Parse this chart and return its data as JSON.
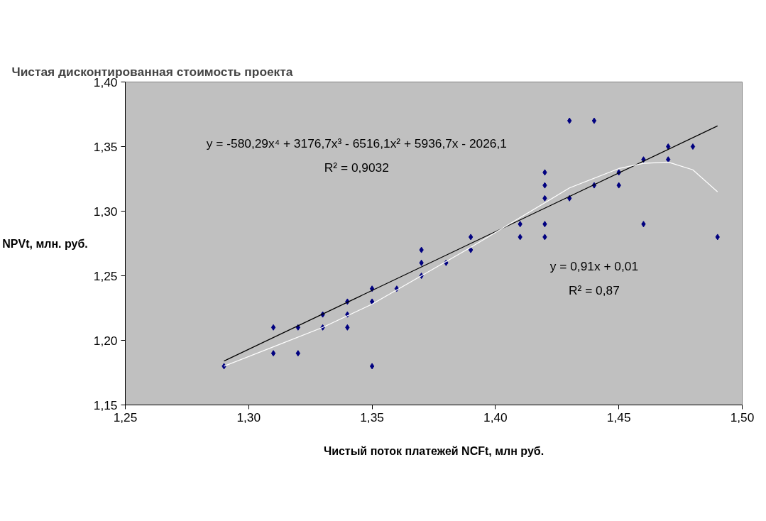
{
  "chart_data": {
    "type": "scatter",
    "title": "Чистая дисконтированная стоимость проекта",
    "xlabel": "Чистый поток платежей NCFt, млн руб.",
    "ylabel": "NPVt, млн. руб.",
    "xlim": [
      1.25,
      1.5
    ],
    "ylim": [
      1.15,
      1.4
    ],
    "xticks": [
      {
        "value": 1.25,
        "label": "1,25"
      },
      {
        "value": 1.3,
        "label": "1,30"
      },
      {
        "value": 1.35,
        "label": "1,35"
      },
      {
        "value": 1.4,
        "label": "1,40"
      },
      {
        "value": 1.45,
        "label": "1,45"
      },
      {
        "value": 1.5,
        "label": "1,50"
      }
    ],
    "yticks": [
      {
        "value": 1.15,
        "label": "1,15"
      },
      {
        "value": 1.2,
        "label": "1,20"
      },
      {
        "value": 1.25,
        "label": "1,25"
      },
      {
        "value": 1.3,
        "label": "1,30"
      },
      {
        "value": 1.35,
        "label": "1,35"
      },
      {
        "value": 1.4,
        "label": "1,40"
      }
    ],
    "grid": false,
    "series": [
      {
        "marker": "diamond",
        "color": "#000080",
        "x": [
          1.29,
          1.31,
          1.31,
          1.32,
          1.32,
          1.33,
          1.33,
          1.34,
          1.34,
          1.34,
          1.35,
          1.35,
          1.35,
          1.36,
          1.37,
          1.37,
          1.37,
          1.38,
          1.39,
          1.39,
          1.41,
          1.41,
          1.42,
          1.42,
          1.42,
          1.42,
          1.42,
          1.43,
          1.43,
          1.44,
          1.44,
          1.45,
          1.45,
          1.46,
          1.46,
          1.47,
          1.47,
          1.48,
          1.49
        ],
        "values": [
          1.18,
          1.21,
          1.19,
          1.21,
          1.19,
          1.22,
          1.21,
          1.23,
          1.22,
          1.21,
          1.24,
          1.23,
          1.18,
          1.24,
          1.27,
          1.26,
          1.25,
          1.26,
          1.28,
          1.27,
          1.29,
          1.28,
          1.33,
          1.32,
          1.31,
          1.29,
          1.28,
          1.37,
          1.31,
          1.37,
          1.32,
          1.33,
          1.32,
          1.34,
          1.29,
          1.35,
          1.34,
          1.35,
          1.28
        ]
      },
      {
        "type": "line",
        "marker": "none",
        "color": "#000000",
        "x": [
          1.29,
          1.49
        ],
        "values": [
          1.184,
          1.366
        ]
      },
      {
        "type": "line",
        "marker": "none",
        "color": "#ffffff",
        "x": [
          1.29,
          1.31,
          1.33,
          1.35,
          1.37,
          1.39,
          1.41,
          1.43,
          1.45,
          1.46,
          1.47,
          1.48,
          1.49
        ],
        "values": [
          1.18,
          1.195,
          1.21,
          1.228,
          1.25,
          1.272,
          1.295,
          1.318,
          1.333,
          1.337,
          1.338,
          1.332,
          1.315
        ]
      }
    ],
    "annotations": [
      "y = -580,29x⁴ + 3176,7x³ - 6516,1x² + 5936,7x - 2026,1",
      "R² = 0,9032",
      "y = 0,91x + 0,01",
      "R² = 0,87"
    ]
  }
}
